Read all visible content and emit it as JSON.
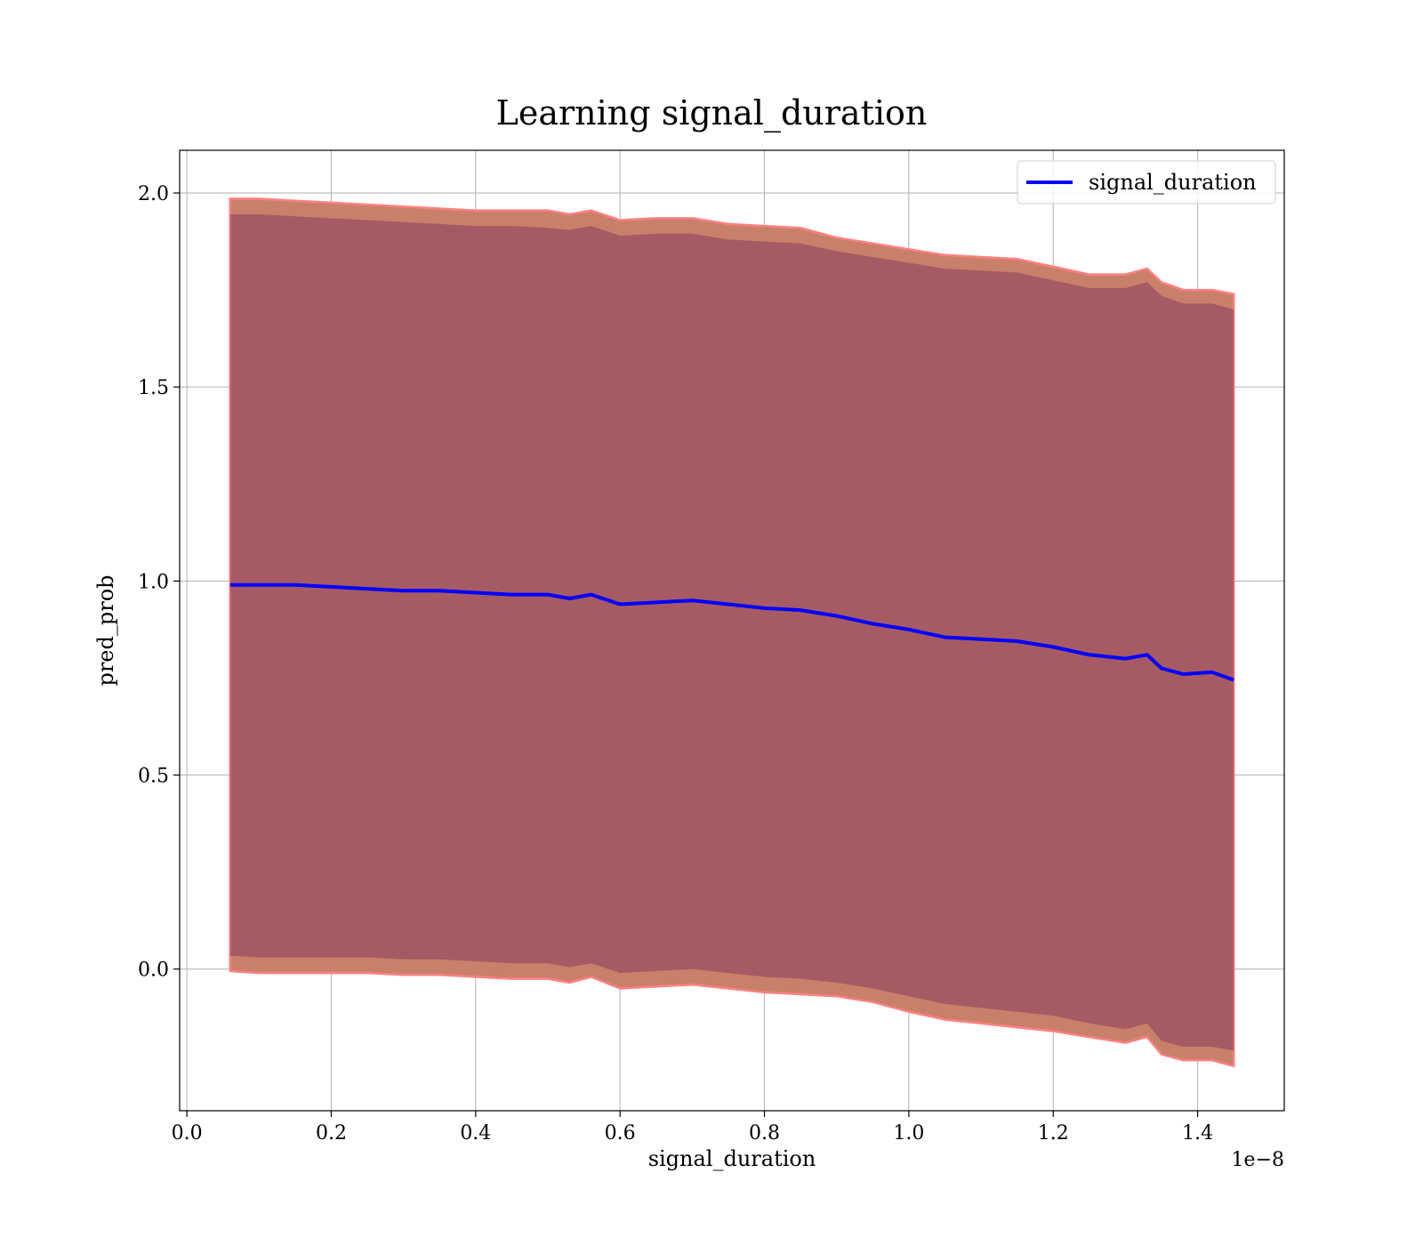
{
  "chart_data": {
    "type": "line",
    "title": "Learning signal_duration",
    "xlabel": "signal_duration",
    "ylabel": "pred_prob",
    "x_offset_label": "1e−8",
    "x_scale": 1e-08,
    "xlim": [
      -0.01,
      1.52
    ],
    "ylim": [
      -0.365,
      2.11
    ],
    "x_ticks": [
      0.0,
      0.2,
      0.4,
      0.6,
      0.8,
      1.0,
      1.2,
      1.4
    ],
    "x_tick_labels": [
      "0.0",
      "0.2",
      "0.4",
      "0.6",
      "0.8",
      "1.0",
      "1.2",
      "1.4"
    ],
    "y_ticks": [
      0.0,
      0.5,
      1.0,
      1.5,
      2.0
    ],
    "y_tick_labels": [
      "0.0",
      "0.5",
      "1.0",
      "1.5",
      "2.0"
    ],
    "grid": true,
    "legend_position": "top-right",
    "colors": {
      "line": "#0000ff",
      "outer_band_fill": "#c8806a",
      "outer_band_edge": "#ff8080",
      "inner_band_fill": "#8b3a5e"
    },
    "series": [
      {
        "name": "signal_duration",
        "x": [
          0.06,
          0.1,
          0.15,
          0.2,
          0.25,
          0.3,
          0.35,
          0.4,
          0.45,
          0.5,
          0.53,
          0.56,
          0.6,
          0.65,
          0.7,
          0.75,
          0.8,
          0.85,
          0.9,
          0.95,
          1.0,
          1.05,
          1.1,
          1.15,
          1.2,
          1.25,
          1.3,
          1.33,
          1.35,
          1.38,
          1.42,
          1.45
        ],
        "y": [
          0.99,
          0.99,
          0.99,
          0.985,
          0.98,
          0.975,
          0.975,
          0.97,
          0.965,
          0.965,
          0.955,
          0.965,
          0.94,
          0.945,
          0.95,
          0.94,
          0.93,
          0.925,
          0.91,
          0.89,
          0.875,
          0.855,
          0.85,
          0.845,
          0.83,
          0.81,
          0.8,
          0.81,
          0.775,
          0.76,
          0.765,
          0.745
        ]
      }
    ],
    "bands": {
      "outer_upper": [
        1.985,
        1.985,
        1.98,
        1.975,
        1.97,
        1.965,
        1.96,
        1.955,
        1.955,
        1.955,
        1.945,
        1.955,
        1.93,
        1.935,
        1.935,
        1.92,
        1.915,
        1.91,
        1.885,
        1.87,
        1.855,
        1.84,
        1.835,
        1.83,
        1.81,
        1.79,
        1.79,
        1.805,
        1.77,
        1.75,
        1.75,
        1.74
      ],
      "outer_lower": [
        -0.005,
        -0.01,
        -0.01,
        -0.01,
        -0.01,
        -0.015,
        -0.015,
        -0.02,
        -0.025,
        -0.025,
        -0.035,
        -0.02,
        -0.05,
        -0.045,
        -0.04,
        -0.05,
        -0.06,
        -0.065,
        -0.07,
        -0.085,
        -0.11,
        -0.13,
        -0.14,
        -0.15,
        -0.16,
        -0.175,
        -0.19,
        -0.175,
        -0.22,
        -0.235,
        -0.235,
        -0.25
      ],
      "inner_upper": [
        1.945,
        1.945,
        1.94,
        1.935,
        1.93,
        1.925,
        1.92,
        1.915,
        1.915,
        1.91,
        1.905,
        1.915,
        1.89,
        1.895,
        1.895,
        1.88,
        1.875,
        1.87,
        1.85,
        1.835,
        1.82,
        1.805,
        1.8,
        1.795,
        1.775,
        1.755,
        1.755,
        1.77,
        1.735,
        1.715,
        1.715,
        1.7
      ],
      "inner_lower": [
        0.035,
        0.03,
        0.03,
        0.03,
        0.03,
        0.025,
        0.025,
        0.02,
        0.015,
        0.015,
        0.005,
        0.015,
        -0.01,
        -0.005,
        0.0,
        -0.01,
        -0.02,
        -0.025,
        -0.035,
        -0.05,
        -0.07,
        -0.09,
        -0.1,
        -0.11,
        -0.12,
        -0.14,
        -0.155,
        -0.14,
        -0.185,
        -0.2,
        -0.2,
        -0.21
      ]
    }
  }
}
